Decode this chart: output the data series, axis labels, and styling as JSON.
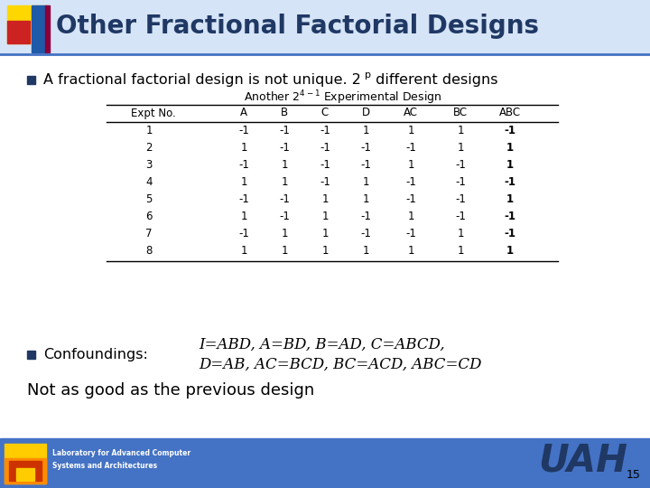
{
  "title": "Other Fractional Factorial Designs",
  "title_color": "#1F3864",
  "background_color": "#FFFFFF",
  "bullet1_pre": "A fractional factorial design is not unique. 2",
  "bullet1_super": "p",
  "bullet1_post": " different designs",
  "table_headers": [
    "Expt No.",
    "A",
    "B",
    "C",
    "D",
    "AC",
    "BC",
    "ABC"
  ],
  "table_data": [
    [
      1,
      -1,
      -1,
      -1,
      1,
      1,
      1,
      -1
    ],
    [
      2,
      1,
      -1,
      -1,
      -1,
      -1,
      1,
      1
    ],
    [
      3,
      -1,
      1,
      -1,
      -1,
      1,
      -1,
      1
    ],
    [
      4,
      1,
      1,
      -1,
      1,
      -1,
      -1,
      -1
    ],
    [
      5,
      -1,
      -1,
      1,
      1,
      -1,
      -1,
      1
    ],
    [
      6,
      1,
      -1,
      1,
      -1,
      1,
      -1,
      -1
    ],
    [
      7,
      -1,
      1,
      1,
      -1,
      -1,
      1,
      -1
    ],
    [
      8,
      1,
      1,
      1,
      1,
      1,
      1,
      1
    ]
  ],
  "bullet2": "Confoundings:",
  "confoundings_line1": "I=ABD, A=BD, B=AD, C=ABCD,",
  "confoundings_line2": "D=AB, AC=BCD, BC=ACD, ABC=CD",
  "footer_text": "Not as good as the previous design",
  "page_number": "15",
  "logo_text": "UAH",
  "lab_line1": "Laboratory for Advanced Computer",
  "lab_line2": "Systems and Architectures",
  "uah_color": "#1F3864",
  "bullet_color": "#1F3864",
  "header_bg": "#FFFFFF",
  "bottom_bar_color": "#4472C4"
}
